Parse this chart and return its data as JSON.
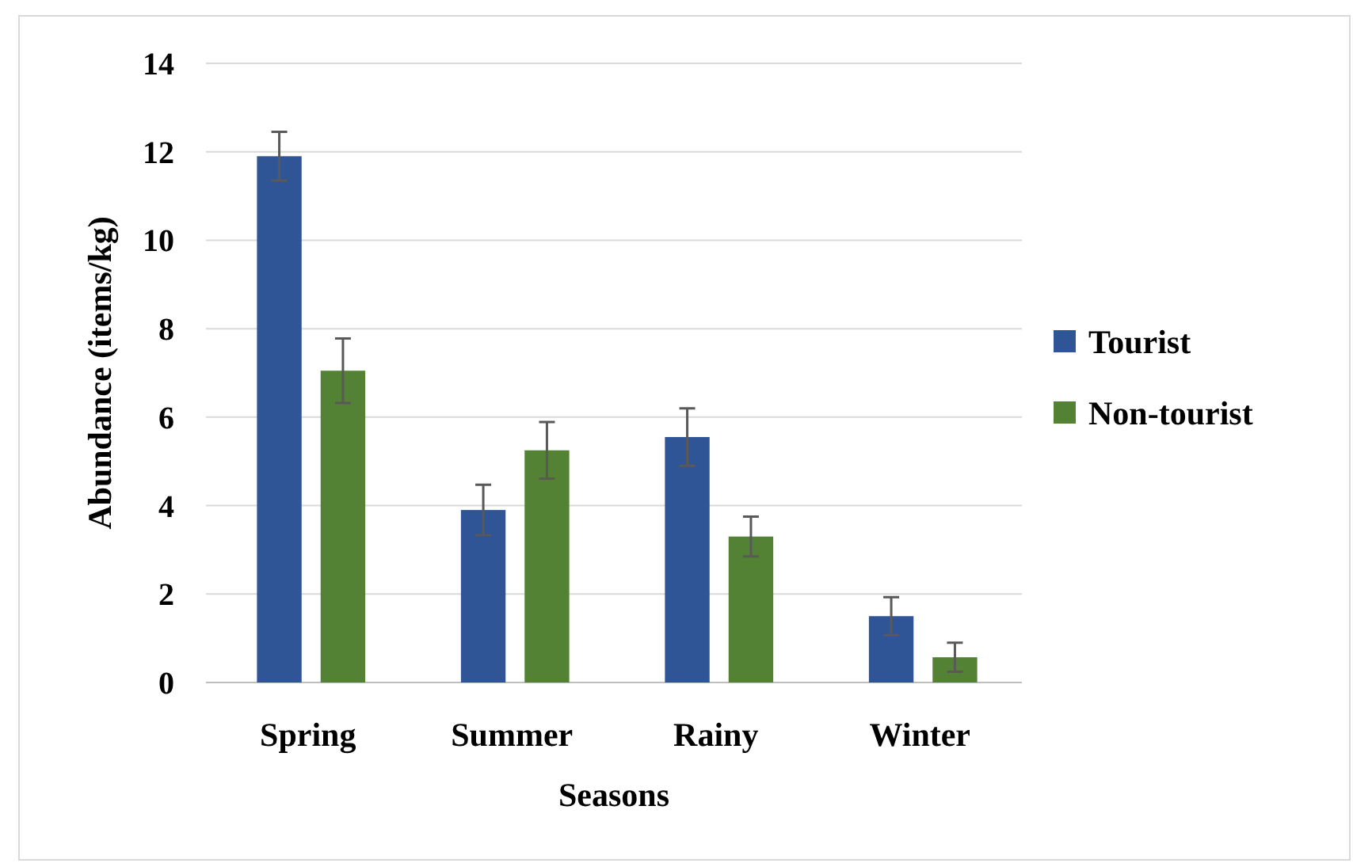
{
  "chart_data": {
    "type": "bar",
    "xlabel": "Seasons",
    "ylabel": "Abundance (items/kg)",
    "categories": [
      "Spring",
      "Summer",
      "Rainy",
      "Winter"
    ],
    "series": [
      {
        "name": "Tourist",
        "color": "#2f5597",
        "values": [
          11.9,
          3.9,
          5.55,
          1.5
        ],
        "errors": [
          0.55,
          0.57,
          0.65,
          0.43
        ]
      },
      {
        "name": "Non-tourist",
        "color": "#548235",
        "values": [
          7.05,
          5.25,
          3.3,
          0.57
        ],
        "errors": [
          0.73,
          0.64,
          0.45,
          0.33
        ]
      }
    ],
    "ylim": [
      0,
      14
    ],
    "yticks": [
      0,
      2,
      4,
      6,
      8,
      10,
      12,
      14
    ],
    "grid": "y",
    "legend": "right"
  }
}
